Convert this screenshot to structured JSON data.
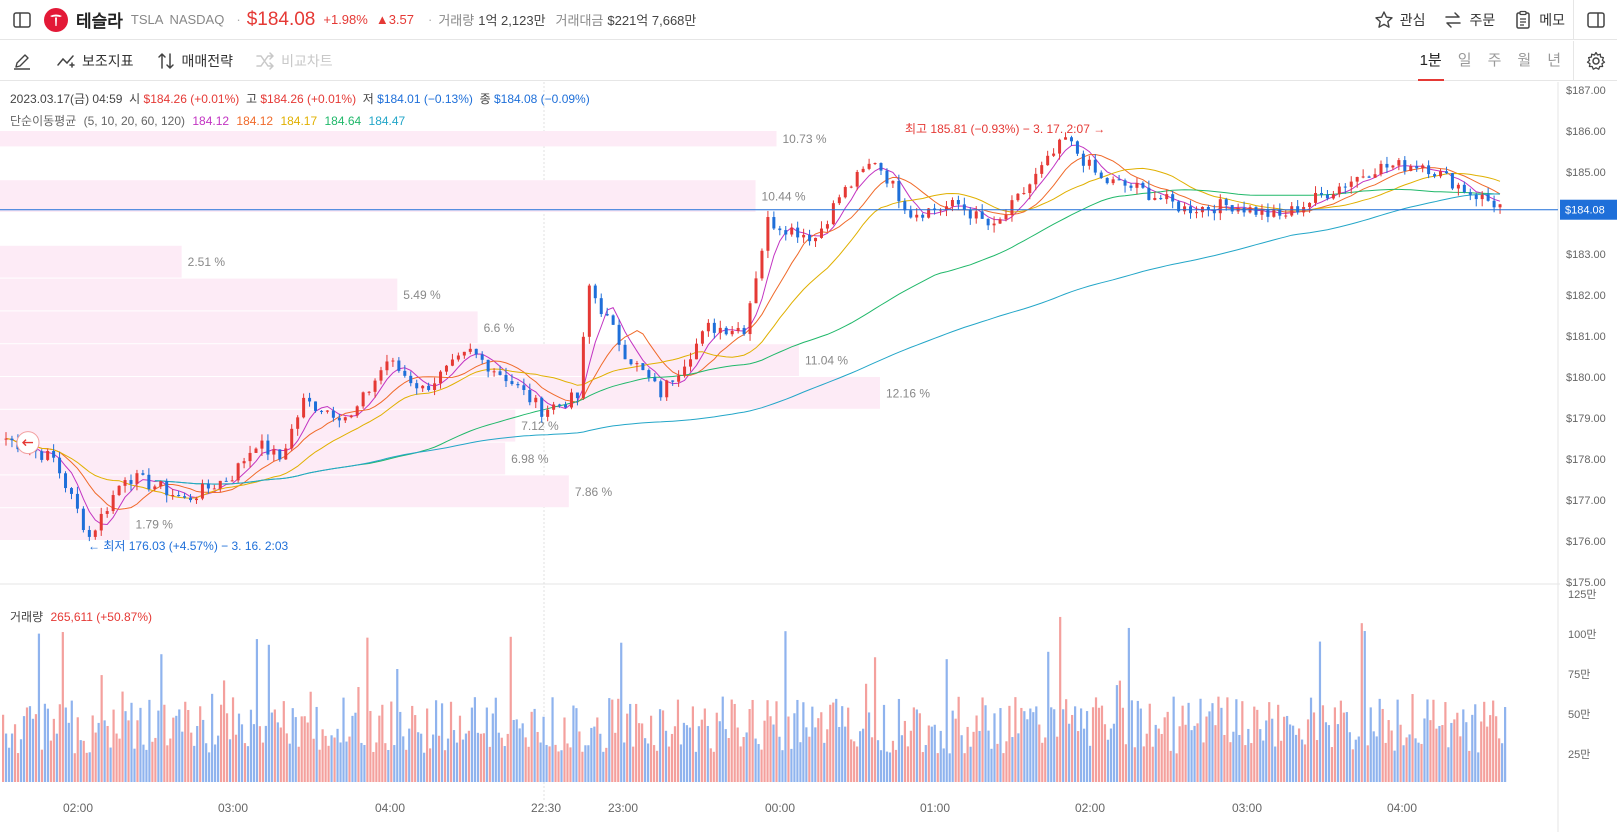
{
  "header": {
    "name": "테슬라",
    "ticker": "TSLA",
    "exchange": "NASDAQ",
    "price": "$184.08",
    "change_pct": "+1.98%",
    "change_abs": "▲3.57",
    "volume_label": "거래량",
    "volume_value": "1억 2,123만",
    "amount_label": "거래대금",
    "amount_value": "$221억 7,668만",
    "watch_label": "관심",
    "order_label": "주문",
    "memo_label": "메모"
  },
  "toolbar": {
    "indicator_label": "보조지표",
    "strategy_label": "매매전략",
    "compare_label": "비교차트",
    "periods": [
      "1분",
      "일",
      "주",
      "월",
      "년"
    ]
  },
  "ohlc": {
    "datetime": "2023.03.17(금) 04:59",
    "open_label": "시",
    "open": "$184.26 (+0.01%)",
    "high_label": "고",
    "high": "$184.26 (+0.01%)",
    "low_label": "저",
    "low": "$184.01 (−0.13%)",
    "close_label": "종",
    "close": "$184.08 (−0.09%)"
  },
  "ma_legend": {
    "label": "단순이동평균",
    "params": "(5, 10, 20, 60, 120)",
    "values": [
      "184.12",
      "184.12",
      "184.17",
      "184.64",
      "184.47"
    ]
  },
  "volume_legend": {
    "label": "거래량",
    "value": "265,611 (+50.87%)"
  },
  "colors": {
    "up": "#e53935",
    "down": "#1e6fd9",
    "up_vol": "#f4a09d",
    "down_vol": "#8fb3ee",
    "ma": [
      "#c234c2",
      "#f06a2a",
      "#e0b000",
      "#20b86a",
      "#23a6c8"
    ],
    "profile": "#fdebf6"
  },
  "chart_data": {
    "type": "candlestick",
    "price_axis": {
      "min": 175,
      "max": 187,
      "ticks": [
        "$187.00",
        "$186.00",
        "$185.00",
        "$184.00",
        "$183.00",
        "$182.00",
        "$181.00",
        "$180.00",
        "$179.00",
        "$178.00",
        "$177.00",
        "$176.00",
        "$175.00"
      ]
    },
    "volume_axis": {
      "ticks": [
        "125만",
        "100만",
        "75만",
        "50만",
        "25만"
      ]
    },
    "x_ticks": [
      "02:00",
      "03:00",
      "04:00",
      "22:30",
      "23:00",
      "00:00",
      "01:00",
      "02:00",
      "03:00",
      "04:00"
    ],
    "current_price_label": "$184.08",
    "current_price": 184.08,
    "high_annotation": "최고 185.81 (−0.93%) − 3. 17. 2:07 →",
    "low_annotation": "← 최저 176.03 (+4.57%) − 3. 16. 2:03",
    "volume_profile": [
      {
        "low": 185.6,
        "high": 186.0,
        "pct": "10.73 %",
        "value": 10.73
      },
      {
        "low": 184.8,
        "high": 185.6,
        "pct": "",
        "value": 0
      },
      {
        "low": 184.0,
        "high": 184.8,
        "pct": "10.44 %",
        "value": 10.44
      },
      {
        "low": 183.2,
        "high": 184.0,
        "pct": "",
        "value": 0
      },
      {
        "low": 182.4,
        "high": 183.2,
        "pct": "2.51 %",
        "value": 2.51
      },
      {
        "low": 181.6,
        "high": 182.4,
        "pct": "5.49 %",
        "value": 5.49
      },
      {
        "low": 180.8,
        "high": 181.6,
        "pct": "6.6 %",
        "value": 6.6
      },
      {
        "low": 180.0,
        "high": 180.8,
        "pct": "11.04 %",
        "value": 11.04
      },
      {
        "low": 179.2,
        "high": 180.0,
        "pct": "12.16 %",
        "value": 12.16
      },
      {
        "low": 178.4,
        "high": 179.2,
        "pct": "7.12 %",
        "value": 7.12
      },
      {
        "low": 177.6,
        "high": 178.4,
        "pct": "6.98 %",
        "value": 6.98
      },
      {
        "low": 176.8,
        "high": 177.6,
        "pct": "7.86 %",
        "value": 7.86
      },
      {
        "low": 176.0,
        "high": 176.8,
        "pct": "1.79 %",
        "value": 1.79
      }
    ],
    "price_path": [
      [
        0,
        178.5
      ],
      [
        8,
        178.0
      ],
      [
        14,
        176.1
      ],
      [
        20,
        177.6
      ],
      [
        26,
        177.3
      ],
      [
        30,
        177.0
      ],
      [
        38,
        177.6
      ],
      [
        42,
        178.4
      ],
      [
        46,
        178.0
      ],
      [
        50,
        179.4
      ],
      [
        58,
        179.0
      ],
      [
        64,
        180.4
      ],
      [
        70,
        179.7
      ],
      [
        78,
        180.6
      ],
      [
        84,
        180.0
      ],
      [
        90,
        179.2
      ],
      [
        96,
        179.5
      ],
      [
        98,
        182.2
      ],
      [
        104,
        180.6
      ],
      [
        110,
        179.6
      ],
      [
        118,
        181.2
      ],
      [
        124,
        181.2
      ],
      [
        128,
        183.8
      ],
      [
        136,
        183.4
      ],
      [
        140,
        184.4
      ],
      [
        146,
        185.3
      ],
      [
        152,
        184.0
      ],
      [
        160,
        184.2
      ],
      [
        166,
        183.6
      ],
      [
        172,
        184.7
      ],
      [
        178,
        185.8
      ],
      [
        184,
        184.8
      ],
      [
        190,
        184.6
      ],
      [
        198,
        184.1
      ],
      [
        206,
        184.2
      ],
      [
        214,
        183.9
      ],
      [
        222,
        184.5
      ],
      [
        230,
        185.1
      ],
      [
        238,
        185.2
      ],
      [
        246,
        184.5
      ],
      [
        252,
        184.1
      ]
    ]
  }
}
